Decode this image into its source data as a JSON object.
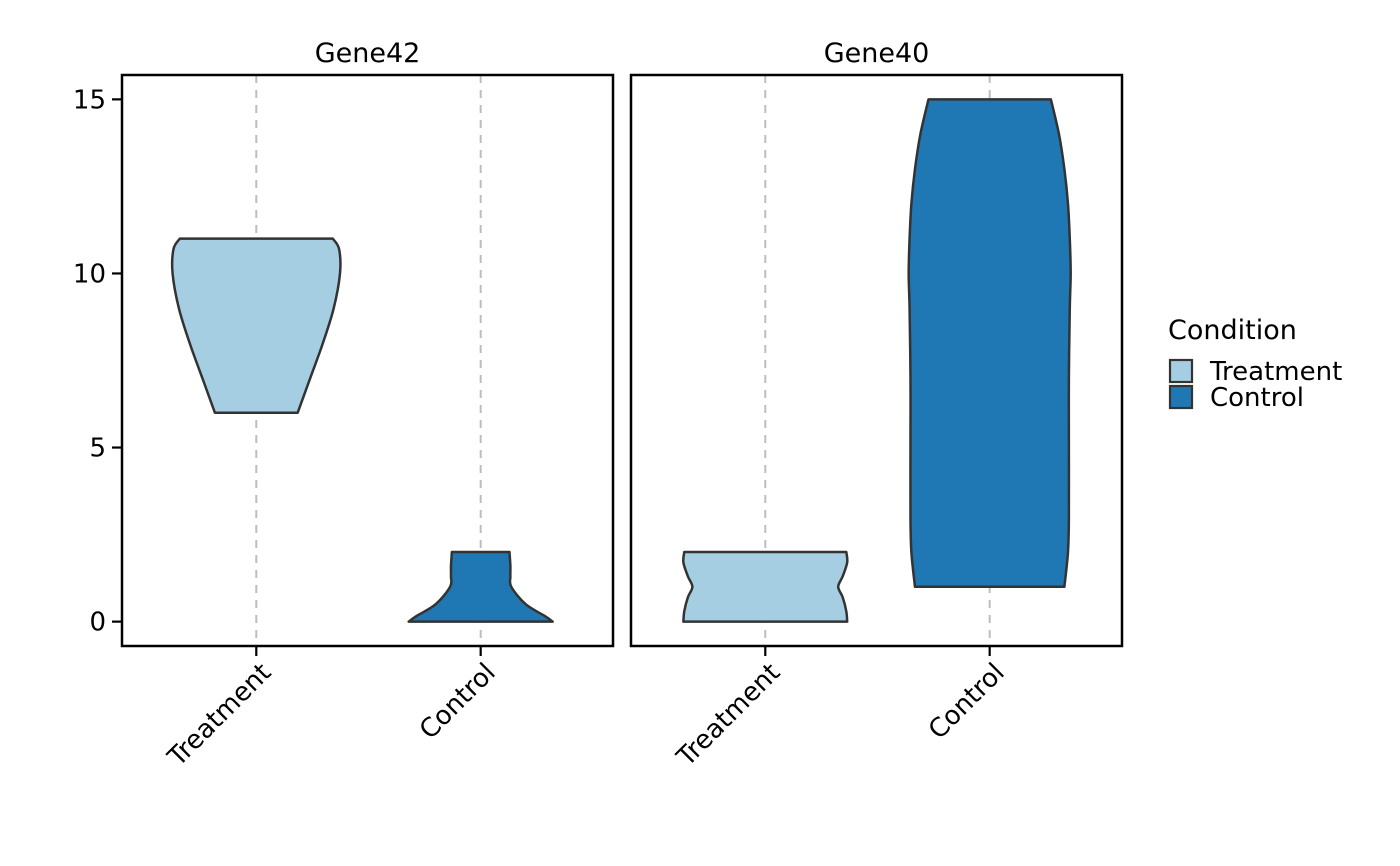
{
  "chart_data": {
    "type": "violin",
    "title": "",
    "xlabel": "",
    "ylabel": "",
    "ylim": [
      -0.7,
      15.7
    ],
    "y_ticks": [
      0,
      5,
      10,
      15
    ],
    "grid": "dashed vertical lines at each category",
    "categories": [
      "Treatment",
      "Control"
    ],
    "legend": {
      "title": "Condition",
      "position": "right",
      "items": [
        {
          "label": "Treatment",
          "color": "#a6cee3"
        },
        {
          "label": "Control",
          "color": "#1f78b4"
        }
      ]
    },
    "facets": [
      {
        "title": "Gene42",
        "violins": [
          {
            "category": "Treatment",
            "color": "#a6cee3",
            "min": 6,
            "max": 11,
            "profile": [
              [
                6,
                0.46
              ],
              [
                7,
                0.6
              ],
              [
                8,
                0.74
              ],
              [
                9,
                0.86
              ],
              [
                10,
                0.93
              ],
              [
                10.7,
                0.92
              ],
              [
                11,
                0.85
              ]
            ]
          },
          {
            "category": "Control",
            "color": "#1f78b4",
            "min": 0,
            "max": 2,
            "profile": [
              [
                0,
                0.8
              ],
              [
                0.15,
                0.72
              ],
              [
                0.5,
                0.5
              ],
              [
                1.0,
                0.34
              ],
              [
                1.3,
                0.33
              ],
              [
                1.6,
                0.33
              ],
              [
                2,
                0.32
              ]
            ]
          }
        ]
      },
      {
        "title": "Gene40",
        "violins": [
          {
            "category": "Treatment",
            "color": "#a6cee3",
            "min": 0,
            "max": 2,
            "profile": [
              [
                0,
                0.91
              ],
              [
                0.3,
                0.9
              ],
              [
                0.7,
                0.86
              ],
              [
                1.0,
                0.81
              ],
              [
                1.3,
                0.86
              ],
              [
                1.7,
                0.91
              ],
              [
                2,
                0.9
              ]
            ]
          },
          {
            "category": "Control",
            "color": "#1f78b4",
            "min": 1,
            "max": 15,
            "profile": [
              [
                1,
                0.83
              ],
              [
                2,
                0.87
              ],
              [
                3,
                0.88
              ],
              [
                5,
                0.88
              ],
              [
                7,
                0.88
              ],
              [
                9,
                0.89
              ],
              [
                10,
                0.9
              ],
              [
                11,
                0.89
              ],
              [
                12,
                0.87
              ],
              [
                13,
                0.83
              ],
              [
                14,
                0.77
              ],
              [
                15,
                0.68
              ]
            ]
          }
        ]
      }
    ]
  }
}
